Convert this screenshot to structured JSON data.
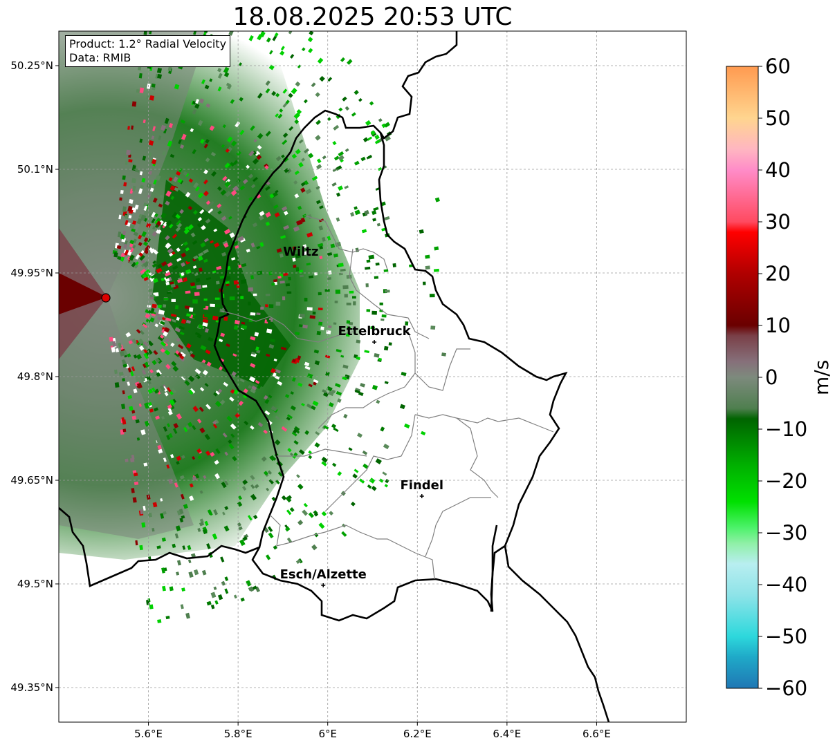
{
  "title": "18.08.2025 20:53 UTC",
  "info": {
    "product": "Product: 1.2° Radial Velocity",
    "data": "Data: RMIB"
  },
  "axes": {
    "x_ticks": [
      "5.6°E",
      "5.8°E",
      "6°E",
      "6.2°E",
      "6.4°E",
      "6.6°E"
    ],
    "x_values": [
      5.6,
      5.8,
      6.0,
      6.2,
      6.4,
      6.6
    ],
    "y_ticks": [
      "50.25°N",
      "50.1°N",
      "49.95°N",
      "49.8°N",
      "49.65°N",
      "49.5°N",
      "49.35°N"
    ],
    "y_values": [
      50.25,
      50.1,
      49.95,
      49.8,
      49.65,
      49.5,
      49.35
    ],
    "lon_range": [
      5.4,
      6.8
    ],
    "lat_range": [
      49.3,
      50.3
    ]
  },
  "cities": [
    {
      "name": "Wiltz",
      "lon": 5.94,
      "lat": 49.965,
      "marker": false
    },
    {
      "name": "Ettelbruck",
      "lon": 6.104,
      "lat": 49.85,
      "marker": true
    },
    {
      "name": "Findel",
      "lon": 6.21,
      "lat": 49.627,
      "marker": true
    },
    {
      "name": "Esch/Alzette",
      "lon": 5.99,
      "lat": 49.498,
      "marker": true
    }
  ],
  "radar_site": {
    "lon": 5.505,
    "lat": 49.914,
    "color": "#dd0000"
  },
  "colorbar": {
    "unit": "m/s",
    "ticks": [
      "60",
      "50",
      "40",
      "30",
      "20",
      "10",
      "0",
      "−10",
      "−20",
      "−30",
      "−40",
      "−50",
      "−60"
    ],
    "values": [
      60,
      50,
      40,
      30,
      20,
      10,
      0,
      -10,
      -20,
      -30,
      -40,
      -50,
      -60
    ],
    "range": [
      -60,
      60
    ],
    "stops": [
      {
        "v": -60,
        "color": "#1f77b4"
      },
      {
        "v": -54,
        "color": "#1fa9c8"
      },
      {
        "v": -50,
        "color": "#2dd8dc"
      },
      {
        "v": -42,
        "color": "#8ee3e8"
      },
      {
        "v": -36,
        "color": "#b8eef0"
      },
      {
        "v": -32,
        "color": "#8ff0a6"
      },
      {
        "v": -29,
        "color": "#4cf26a"
      },
      {
        "v": -24,
        "color": "#00e000"
      },
      {
        "v": -17,
        "color": "#00b000"
      },
      {
        "v": -8,
        "color": "#006400"
      },
      {
        "v": -6,
        "color": "#4f7f4f"
      },
      {
        "v": 0,
        "color": "#7d8a7d"
      },
      {
        "v": 3,
        "color": "#86707a"
      },
      {
        "v": 8,
        "color": "#7a4048"
      },
      {
        "v": 10,
        "color": "#6a0000"
      },
      {
        "v": 20,
        "color": "#b00000"
      },
      {
        "v": 28,
        "color": "#ff0000"
      },
      {
        "v": 30,
        "color": "#ff4a60"
      },
      {
        "v": 40,
        "color": "#ff8cc8"
      },
      {
        "v": 44,
        "color": "#ffb6c1"
      },
      {
        "v": 50,
        "color": "#ffd58f"
      },
      {
        "v": 60,
        "color": "#ff9a50"
      }
    ]
  }
}
